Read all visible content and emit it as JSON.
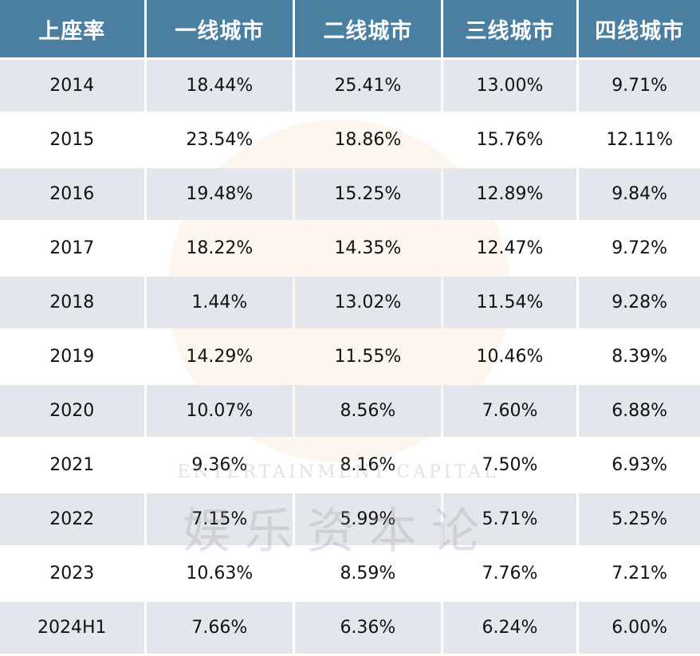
{
  "chart_data": {
    "type": "table",
    "columns": [
      "上座率",
      "一线城市",
      "二线城市",
      "三线城市",
      "四线城市"
    ],
    "rows": [
      [
        "2014",
        "18.44%",
        "25.41%",
        "13.00%",
        "9.71%"
      ],
      [
        "2015",
        "23.54%",
        "18.86%",
        "15.76%",
        "12.11%"
      ],
      [
        "2016",
        "19.48%",
        "15.25%",
        "12.89%",
        "9.84%"
      ],
      [
        "2017",
        "18.22%",
        "14.35%",
        "12.47%",
        "9.72%"
      ],
      [
        "2018",
        "1.44%",
        "13.02%",
        "11.54%",
        "9.28%"
      ],
      [
        "2019",
        "14.29%",
        "11.55%",
        "10.46%",
        "8.39%"
      ],
      [
        "2020",
        "10.07%",
        "8.56%",
        "7.60%",
        "6.88%"
      ],
      [
        "2021",
        "9.36%",
        "8.16%",
        "7.50%",
        "6.93%"
      ],
      [
        "2022",
        "7.15%",
        "5.99%",
        "5.71%",
        "5.25%"
      ],
      [
        "2023",
        "10.63%",
        "8.59%",
        "7.76%",
        "7.21%"
      ],
      [
        "2024H1",
        "7.66%",
        "6.36%",
        "6.24%",
        "6.00%"
      ]
    ],
    "colors": {
      "header": "#4a7fa1",
      "header_text": "#ffffff",
      "stripe": "#e3e6ec"
    }
  },
  "watermark": {
    "en": "ENTERTAINMENT CAPITAL",
    "cn": "娱乐资本论"
  }
}
